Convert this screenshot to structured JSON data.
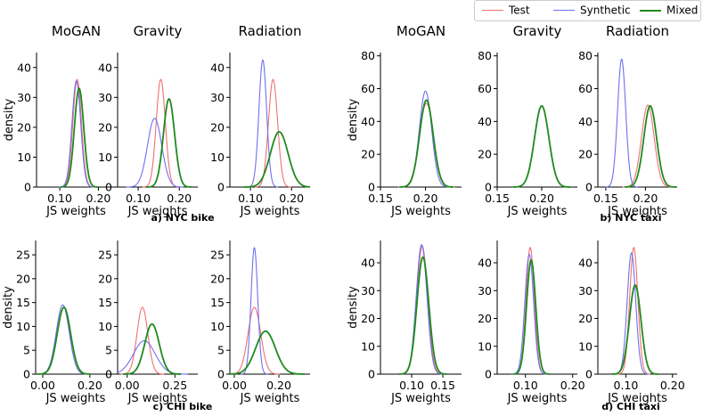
{
  "chart_data": [
    {
      "panel": "NYC bike",
      "title": "MoGAN",
      "type": "line",
      "xlabel": "JS weights",
      "ylabel": "density",
      "xlim": [
        0.04,
        0.245
      ],
      "ylim": [
        0,
        45
      ],
      "xticks": [
        0.1,
        0.2
      ],
      "xtick_labels": [
        "0.10",
        "0.20"
      ],
      "yticks": [
        0,
        10,
        20,
        30,
        40
      ],
      "ytick_labels": [
        "0",
        "10",
        "20",
        "30",
        "40"
      ],
      "series": [
        {
          "name": "Test",
          "peak_x": 0.145,
          "peak_y": 36
        },
        {
          "name": "Synthetic",
          "peak_x": 0.143,
          "peak_y": 35.5
        },
        {
          "name": "Mixed",
          "peak_x": 0.15,
          "peak_y": 33
        }
      ]
    },
    {
      "panel": "NYC bike",
      "title": "Gravity",
      "type": "line",
      "xlabel": "JS weights",
      "ylabel": "",
      "xlim": [
        0.05,
        0.245
      ],
      "ylim": [
        0,
        45
      ],
      "xticks": [
        0.1,
        0.2
      ],
      "xtick_labels": [
        "0.10",
        "0.20"
      ],
      "yticks": [
        0,
        10,
        20,
        30,
        40
      ],
      "ytick_labels": [
        "0",
        "10",
        "20",
        "30",
        "40"
      ],
      "series": [
        {
          "name": "Test",
          "peak_x": 0.155,
          "peak_y": 36
        },
        {
          "name": "Synthetic",
          "peak_x": 0.14,
          "peak_y": 23
        },
        {
          "name": "Mixed",
          "peak_x": 0.175,
          "peak_y": 29.5
        }
      ]
    },
    {
      "panel": "NYC bike",
      "title": "Radiation",
      "type": "line",
      "xlabel": "JS weights",
      "ylabel": "",
      "xlim": [
        0.05,
        0.245
      ],
      "ylim": [
        0,
        45
      ],
      "xticks": [
        0.1,
        0.2
      ],
      "xtick_labels": [
        "0.10",
        "0.20"
      ],
      "yticks": [
        0,
        10,
        20,
        30,
        40
      ],
      "ytick_labels": [
        "0",
        "10",
        "20",
        "30",
        "40"
      ],
      "series": [
        {
          "name": "Test",
          "peak_x": 0.155,
          "peak_y": 36
        },
        {
          "name": "Synthetic",
          "peak_x": 0.13,
          "peak_y": 42.5
        },
        {
          "name": "Mixed",
          "peak_x": 0.17,
          "peak_y": 18.5
        }
      ]
    },
    {
      "panel": "NYC taxi",
      "title": "MoGAN",
      "type": "line",
      "xlabel": "JS weights",
      "ylabel": "density",
      "xlim": [
        0.15,
        0.24
      ],
      "ylim": [
        0,
        82
      ],
      "xticks": [
        0.15,
        0.2
      ],
      "xtick_labels": [
        "0.15",
        "0.20"
      ],
      "yticks": [
        0,
        20,
        40,
        60,
        80
      ],
      "ytick_labels": [
        "0",
        "20",
        "40",
        "60",
        "80"
      ],
      "series": [
        {
          "name": "Test",
          "peak_x": 0.201,
          "peak_y": 51
        },
        {
          "name": "Synthetic",
          "peak_x": 0.2,
          "peak_y": 58.5
        },
        {
          "name": "Mixed",
          "peak_x": 0.201,
          "peak_y": 53
        }
      ]
    },
    {
      "panel": "NYC taxi",
      "title": "Gravity",
      "type": "line",
      "xlabel": "JS weights",
      "ylabel": "",
      "xlim": [
        0.15,
        0.24
      ],
      "ylim": [
        0,
        82
      ],
      "xticks": [
        0.15,
        0.2
      ],
      "xtick_labels": [
        "0.15",
        "0.20"
      ],
      "yticks": [
        0,
        20,
        40,
        60,
        80
      ],
      "ytick_labels": [
        "0",
        "20",
        "40",
        "60",
        "80"
      ],
      "series": [
        {
          "name": "Test",
          "peak_x": 0.2,
          "peak_y": 49.5
        },
        {
          "name": "Synthetic",
          "peak_x": 0.2,
          "peak_y": 49.5
        },
        {
          "name": "Mixed",
          "peak_x": 0.2,
          "peak_y": 49.5
        }
      ]
    },
    {
      "panel": "NYC taxi",
      "title": "Radiation",
      "type": "line",
      "xlabel": "JS weights",
      "ylabel": "",
      "xlim": [
        0.14,
        0.24
      ],
      "ylim": [
        0,
        82
      ],
      "xticks": [
        0.15,
        0.2
      ],
      "xtick_labels": [
        "0.15",
        "0.20"
      ],
      "yticks": [
        0,
        20,
        40,
        60,
        80
      ],
      "ytick_labels": [
        "0",
        "20",
        "40",
        "60",
        "80"
      ],
      "series": [
        {
          "name": "Test",
          "peak_x": 0.203,
          "peak_y": 50
        },
        {
          "name": "Synthetic",
          "peak_x": 0.17,
          "peak_y": 78
        },
        {
          "name": "Mixed",
          "peak_x": 0.206,
          "peak_y": 49.5
        }
      ]
    },
    {
      "panel": "CHI bike",
      "title": "",
      "type": "line",
      "xlabel": "JS weights",
      "ylabel": "density",
      "xlim": [
        -0.03,
        0.31
      ],
      "ylim": [
        0,
        28
      ],
      "xticks": [
        0.0,
        0.2
      ],
      "xtick_labels": [
        "0.00",
        "0.20"
      ],
      "yticks": [
        0,
        5,
        10,
        15,
        20,
        25
      ],
      "ytick_labels": [
        "0",
        "5",
        "10",
        "15",
        "20",
        "25"
      ],
      "series": [
        {
          "name": "Test",
          "peak_x": 0.09,
          "peak_y": 14
        },
        {
          "name": "Synthetic",
          "peak_x": 0.085,
          "peak_y": 14.5
        },
        {
          "name": "Mixed",
          "peak_x": 0.09,
          "peak_y": 14
        }
      ]
    },
    {
      "panel": "CHI bike",
      "title": "",
      "type": "line",
      "xlabel": "JS weights",
      "ylabel": "",
      "xlim": [
        -0.05,
        0.37
      ],
      "ylim": [
        0,
        28
      ],
      "xticks": [
        0.0,
        0.25
      ],
      "xtick_labels": [
        "0.00",
        "0.25"
      ],
      "yticks": [
        0,
        5,
        10,
        15,
        20,
        25
      ],
      "ytick_labels": [
        "0",
        "5",
        "10",
        "15",
        "20",
        "25"
      ],
      "series": [
        {
          "name": "Test",
          "peak_x": 0.08,
          "peak_y": 14
        },
        {
          "name": "Synthetic",
          "peak_x": 0.09,
          "peak_y": 7
        },
        {
          "name": "Mixed",
          "peak_x": 0.13,
          "peak_y": 10.5
        }
      ]
    },
    {
      "panel": "CHI bike",
      "title": "",
      "type": "line",
      "xlabel": "JS weights",
      "ylabel": "",
      "xlim": [
        -0.02,
        0.34
      ],
      "ylim": [
        0,
        28
      ],
      "xticks": [
        0.0,
        0.2
      ],
      "xtick_labels": [
        "0.00",
        "0.20"
      ],
      "yticks": [
        0,
        5,
        10,
        15,
        20,
        25
      ],
      "ytick_labels": [
        "0",
        "5",
        "10",
        "15",
        "20",
        "25"
      ],
      "series": [
        {
          "name": "Test",
          "peak_x": 0.09,
          "peak_y": 14
        },
        {
          "name": "Synthetic",
          "peak_x": 0.09,
          "peak_y": 26.5
        },
        {
          "name": "Mixed",
          "peak_x": 0.14,
          "peak_y": 9
        }
      ]
    },
    {
      "panel": "CHI taxi",
      "title": "",
      "type": "line",
      "xlabel": "JS weights",
      "ylabel": "density",
      "xlim": [
        0.05,
        0.18
      ],
      "ylim": [
        0,
        48
      ],
      "xticks": [
        0.1,
        0.15
      ],
      "xtick_labels": [
        "0.10",
        "0.15"
      ],
      "yticks": [
        0,
        10,
        20,
        30,
        40
      ],
      "ytick_labels": [
        "0",
        "10",
        "20",
        "30",
        "40"
      ],
      "series": [
        {
          "name": "Test",
          "peak_x": 0.117,
          "peak_y": 46
        },
        {
          "name": "Synthetic",
          "peak_x": 0.116,
          "peak_y": 46.5
        },
        {
          "name": "Mixed",
          "peak_x": 0.118,
          "peak_y": 42
        }
      ]
    },
    {
      "panel": "CHI taxi",
      "title": "",
      "type": "line",
      "xlabel": "JS weights",
      "ylabel": "",
      "xlim": [
        0.04,
        0.21
      ],
      "ylim": [
        0,
        48
      ],
      "xticks": [
        0.1,
        0.2
      ],
      "xtick_labels": [
        "0.10",
        "0.20"
      ],
      "yticks": [
        0,
        10,
        20,
        30,
        40
      ],
      "ytick_labels": [
        "0",
        "10",
        "20",
        "30",
        "40"
      ],
      "series": [
        {
          "name": "Test",
          "peak_x": 0.11,
          "peak_y": 45.5
        },
        {
          "name": "Synthetic",
          "peak_x": 0.108,
          "peak_y": 43
        },
        {
          "name": "Mixed",
          "peak_x": 0.112,
          "peak_y": 41
        }
      ]
    },
    {
      "panel": "CHI taxi",
      "title": "",
      "type": "line",
      "xlabel": "JS weights",
      "ylabel": "",
      "xlim": [
        0.04,
        0.21
      ],
      "ylim": [
        0,
        48
      ],
      "xticks": [
        0.1,
        0.2
      ],
      "xtick_labels": [
        "0.10",
        "0.20"
      ],
      "yticks": [
        0,
        10,
        20,
        30,
        40
      ],
      "ytick_labels": [
        "0",
        "10",
        "20",
        "30",
        "40"
      ],
      "series": [
        {
          "name": "Test",
          "peak_x": 0.117,
          "peak_y": 45.5
        },
        {
          "name": "Synthetic",
          "peak_x": 0.112,
          "peak_y": 43.5
        },
        {
          "name": "Mixed",
          "peak_x": 0.12,
          "peak_y": 32
        }
      ]
    }
  ],
  "captions": [
    "a) NYC bike",
    "b) NYC taxi",
    "c) CHI bike",
    "d) CHI taxi"
  ],
  "legend": [
    {
      "name": "Test",
      "color": "#f07070"
    },
    {
      "name": "Synthetic",
      "color": "#7070f0"
    },
    {
      "name": "Mixed",
      "color": "#1f8a1f"
    }
  ]
}
